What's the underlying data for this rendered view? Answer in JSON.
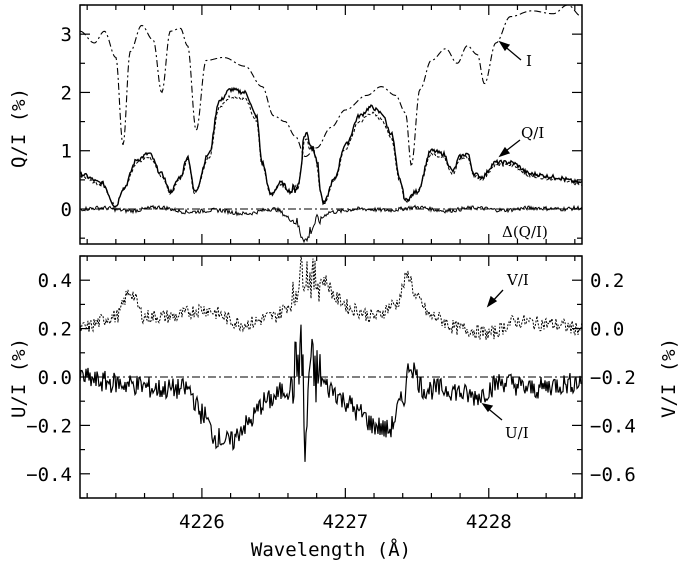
{
  "chart_data": [
    {
      "panel": "top",
      "type": "line",
      "xlabel": "",
      "ylabel": "Q/I (%)",
      "xlim": [
        4225.15,
        4228.65
      ],
      "ylim": [
        -0.6,
        3.5
      ],
      "yticks": [
        "0",
        "1",
        "2",
        "3"
      ],
      "yticks_values": [
        0,
        1,
        2,
        3
      ],
      "zero_line": true,
      "annotations": [
        {
          "text": "I",
          "series": "I"
        },
        {
          "text": "Q/I",
          "series": "Q/I"
        },
        {
          "text": "Δ(Q/I)",
          "series": "Δ(Q/I)"
        }
      ],
      "series": [
        {
          "name": "I",
          "style": "dash-dot",
          "x": [
            4225.15,
            4225.25,
            4225.32,
            4225.4,
            4225.45,
            4225.5,
            4225.58,
            4225.66,
            4225.72,
            4225.78,
            4225.85,
            4225.9,
            4225.96,
            4226.03,
            4226.15,
            4226.3,
            4226.42,
            4226.5,
            4226.58,
            4226.65,
            4226.72,
            4226.8,
            4226.9,
            4227.0,
            4227.15,
            4227.25,
            4227.35,
            4227.42,
            4227.46,
            4227.52,
            4227.6,
            4227.7,
            4227.78,
            4227.85,
            4227.92,
            4227.97,
            4228.05,
            4228.15,
            4228.3,
            4228.45,
            4228.55,
            4228.65
          ],
          "y": [
            3.05,
            2.85,
            3.05,
            2.6,
            1.1,
            2.7,
            3.15,
            2.9,
            2.0,
            3.05,
            3.1,
            2.8,
            1.35,
            2.55,
            2.6,
            2.45,
            2.1,
            1.6,
            1.5,
            1.25,
            0.9,
            1.05,
            1.4,
            1.7,
            1.95,
            2.1,
            1.95,
            1.65,
            0.75,
            2.05,
            2.55,
            2.75,
            2.5,
            2.8,
            2.65,
            2.15,
            2.85,
            3.3,
            3.4,
            3.35,
            3.5,
            3.3
          ]
        },
        {
          "name": "Q/I",
          "style": "solid",
          "x": [
            4225.15,
            4225.3,
            4225.4,
            4225.45,
            4225.55,
            4225.63,
            4225.72,
            4225.78,
            4225.85,
            4225.9,
            4225.95,
            4226.05,
            4226.12,
            4226.2,
            4226.3,
            4226.38,
            4226.42,
            4226.48,
            4226.55,
            4226.62,
            4226.67,
            4226.72,
            4226.78,
            4226.85,
            4226.92,
            4227.0,
            4227.1,
            4227.18,
            4227.25,
            4227.32,
            4227.38,
            4227.42,
            4227.5,
            4227.6,
            4227.68,
            4227.75,
            4227.8,
            4227.85,
            4227.9,
            4227.95,
            4228.05,
            4228.15,
            4228.3,
            4228.45,
            4228.65
          ],
          "y": [
            0.6,
            0.45,
            0.05,
            0.35,
            0.85,
            0.95,
            0.6,
            0.3,
            0.55,
            0.9,
            0.3,
            0.95,
            1.85,
            2.05,
            2.0,
            1.6,
            0.8,
            0.25,
            0.45,
            0.3,
            0.4,
            1.3,
            1.05,
            0.1,
            0.5,
            1.1,
            1.6,
            1.75,
            1.65,
            1.3,
            0.5,
            0.15,
            0.3,
            1.0,
            0.95,
            0.65,
            0.9,
            0.95,
            0.6,
            0.55,
            0.8,
            0.8,
            0.6,
            0.55,
            0.45
          ]
        },
        {
          "name": "Δ(Q/I)",
          "style": "solid",
          "x": [
            4225.15,
            4225.3,
            4225.5,
            4225.7,
            4225.9,
            4226.1,
            4226.3,
            4226.5,
            4226.65,
            4226.7,
            4226.73,
            4226.76,
            4226.8,
            4226.9,
            4227.1,
            4227.3,
            4227.5,
            4227.7,
            4227.9,
            4228.1,
            4228.3,
            4228.5,
            4228.65
          ],
          "y": [
            0.0,
            0.02,
            -0.03,
            0.03,
            -0.05,
            -0.02,
            -0.08,
            0.0,
            -0.2,
            -0.45,
            -0.55,
            -0.35,
            -0.2,
            -0.05,
            0.0,
            -0.02,
            0.03,
            -0.03,
            0.02,
            -0.02,
            0.02,
            0.0,
            0.02
          ]
        }
      ]
    },
    {
      "panel": "bottom",
      "type": "line",
      "xlabel": "Wavelength (Å)",
      "ylabel": "U/I (%)",
      "y2label": "V/I (%)",
      "xlim": [
        4225.15,
        4228.65
      ],
      "ylim": [
        -0.5,
        0.5
      ],
      "y2lim": [
        -0.7,
        0.3
      ],
      "xticks": [
        "4226",
        "4227",
        "4228"
      ],
      "xticks_values": [
        4226,
        4227,
        4228
      ],
      "yticks": [
        "0.4",
        "0.2",
        "0.0",
        "−0.2",
        "−0.4"
      ],
      "yticks_values": [
        0.4,
        0.2,
        0.0,
        -0.2,
        -0.4
      ],
      "y2ticks": [
        "0.2",
        "0.0",
        "−0.2",
        "−0.4",
        "−0.6"
      ],
      "y2ticks_values": [
        0.2,
        0.0,
        -0.2,
        -0.4,
        -0.6
      ],
      "zero_line": true,
      "annotations": [
        {
          "text": "V/I",
          "series": "V/I"
        },
        {
          "text": "U/I",
          "series": "U/I"
        }
      ],
      "series": [
        {
          "name": "V/I",
          "style": "dotted",
          "x": [
            4225.15,
            4225.4,
            4225.5,
            4225.6,
            4225.8,
            4226.0,
            4226.3,
            4226.5,
            4226.62,
            4226.7,
            4226.78,
            4226.85,
            4226.95,
            4227.05,
            4227.2,
            4227.35,
            4227.44,
            4227.5,
            4227.6,
            4227.8,
            4228.0,
            4228.2,
            4228.4,
            4228.65
          ],
          "y": [
            0.0,
            0.05,
            0.15,
            0.05,
            0.05,
            0.08,
            0.02,
            0.05,
            0.1,
            0.25,
            0.2,
            0.2,
            0.12,
            0.08,
            0.05,
            0.1,
            0.22,
            0.12,
            0.05,
            0.0,
            -0.02,
            0.03,
            0.02,
            0.0
          ]
        },
        {
          "name": "U/I",
          "style": "solid",
          "x": [
            4225.15,
            4225.3,
            4225.5,
            4225.7,
            4225.9,
            4226.0,
            4226.1,
            4226.2,
            4226.3,
            4226.45,
            4226.6,
            4226.7,
            4226.72,
            4226.75,
            4226.8,
            4226.9,
            4227.0,
            4227.1,
            4227.2,
            4227.3,
            4227.4,
            4227.45,
            4227.55,
            4227.7,
            4227.9,
            4228.1,
            4228.3,
            4228.5,
            4228.65
          ],
          "y": [
            0.0,
            -0.02,
            -0.03,
            -0.05,
            -0.05,
            -0.15,
            -0.25,
            -0.27,
            -0.2,
            -0.1,
            -0.05,
            0.1,
            -0.35,
            0.05,
            0.0,
            -0.05,
            -0.1,
            -0.15,
            -0.2,
            -0.22,
            -0.1,
            0.05,
            -0.05,
            -0.05,
            -0.08,
            -0.02,
            -0.05,
            -0.03,
            -0.02
          ]
        }
      ]
    }
  ]
}
